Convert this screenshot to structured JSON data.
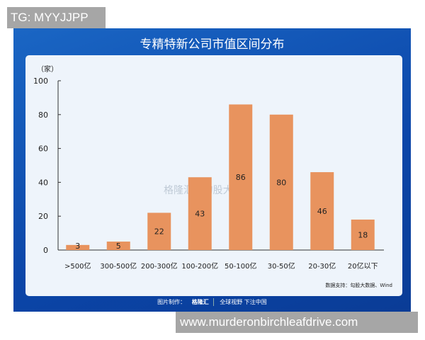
{
  "overlay_top": "TG: MYYJJPP",
  "overlay_bottom": "www.murderonbirchleafdrive.com",
  "watermark": "格隆汇 | 勾股大数据",
  "source": "数据支持：勾股大数据、Wind",
  "footer": {
    "label": "图片制作：",
    "brand": "格隆汇",
    "slogan": "全球视野 下注中国"
  },
  "chart_data": {
    "type": "bar",
    "title": "专精特新公司市值区间分布",
    "ylabel": "（家）",
    "xlabel": "",
    "categories": [
      ">500亿",
      "300-500亿",
      "200-300亿",
      "100-200亿",
      "50-100亿",
      "30-50亿",
      "20-30亿",
      "20亿以下"
    ],
    "values": [
      3,
      5,
      22,
      43,
      86,
      80,
      46,
      18
    ],
    "ylim": [
      0,
      100
    ],
    "yticks": [
      0,
      20,
      40,
      60,
      80,
      100
    ],
    "grid": false,
    "bar_color": "#e8935e"
  }
}
